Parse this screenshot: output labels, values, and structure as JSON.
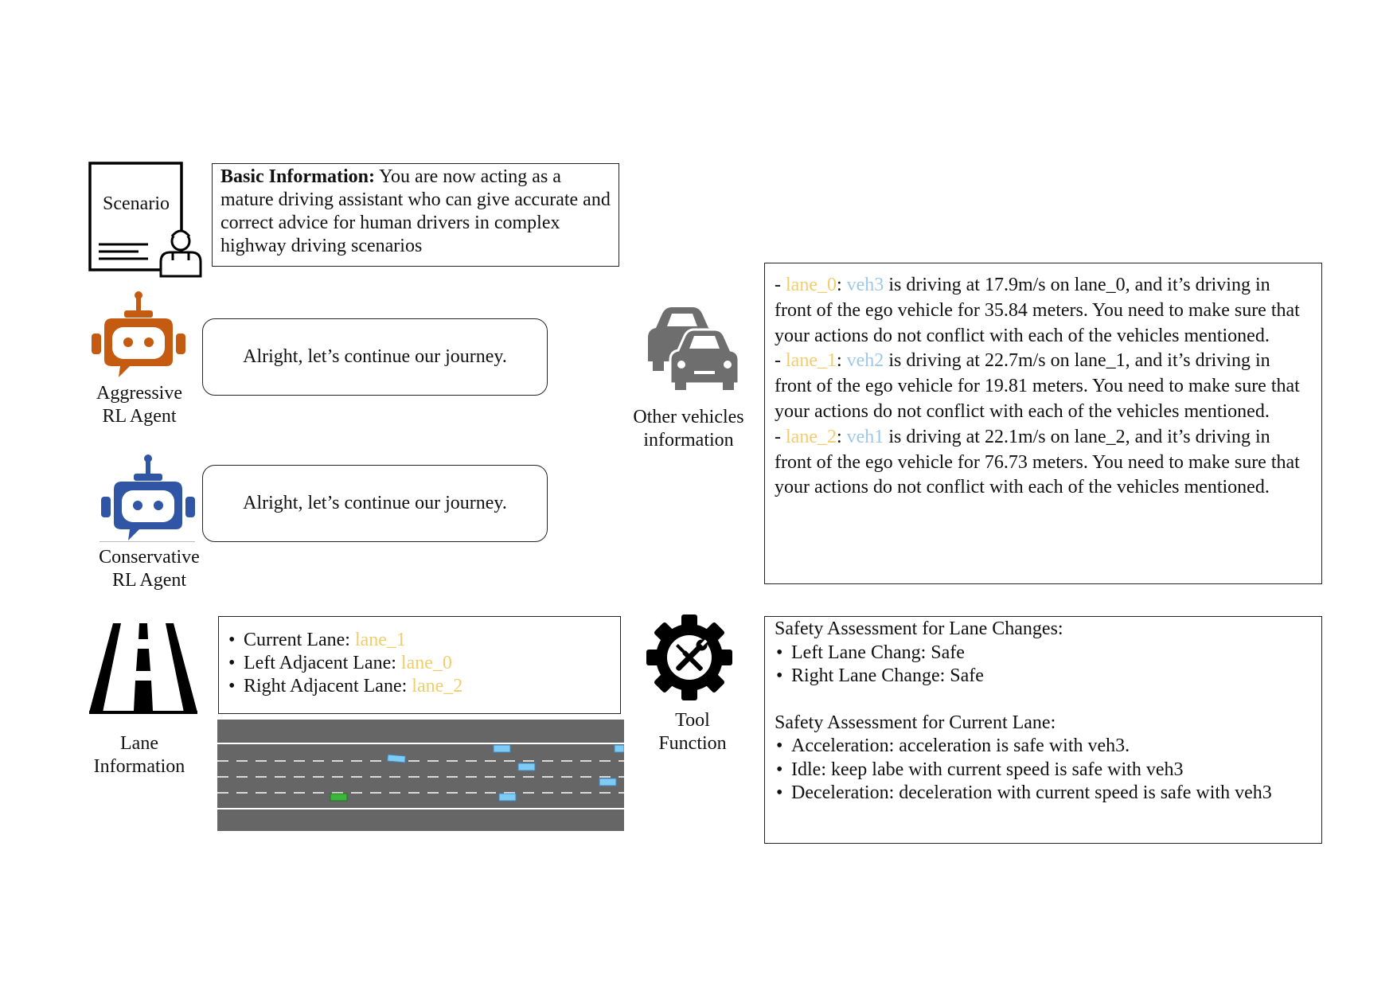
{
  "scenario": {
    "icon_label": "Scenario",
    "basic_title": "Basic Information:",
    "basic_text": " You are now acting as a mature driving assistant who can give accurate and correct advice for human drivers in complex highway driving scenarios"
  },
  "aggressive": {
    "label_line1": "Aggressive",
    "label_line2": "RL Agent",
    "message": "Alright, let’s continue our journey.",
    "color": "#c55a11"
  },
  "conservative": {
    "label_line1": "Conservative",
    "label_line2": "RL Agent",
    "message": "Alright, let’s continue our journey.",
    "color": "#2f55a4"
  },
  "lane_info": {
    "label_line1": "Lane",
    "label_line2": "Information",
    "items": [
      {
        "key": "Current Lane: ",
        "value": "lane_1"
      },
      {
        "key": "Left Adjacent Lane: ",
        "value": "lane_0"
      },
      {
        "key": "Right Adjacent Lane: ",
        "value": "lane_2"
      }
    ]
  },
  "other_vehicles": {
    "label_line1": "Other vehicles",
    "label_line2": "information",
    "entries": [
      {
        "prefix": "- ",
        "lane": "lane_0",
        "sep": ": ",
        "veh": "veh3",
        "text": " is driving at 17.9m/s on lane_0, and it’s driving in front of the ego vehicle for 35.84 meters. You need to make sure that your actions do not conflict with each of the vehicles mentioned."
      },
      {
        "prefix": "- ",
        "lane": "lane_1",
        "sep": ": ",
        "veh": "veh2",
        "text": " is driving at 22.7m/s on lane_1, and it’s driving in front of the ego vehicle for 19.81 meters. You need to make sure that your actions do not conflict with each of the vehicles mentioned."
      },
      {
        "prefix": "- ",
        "lane": "lane_2",
        "sep": ": ",
        "veh": "veh1",
        "text": " is driving at 22.1m/s on lane_2, and it’s driving in front of the ego vehicle for 76.73 meters. You need to make sure that your actions do not conflict with each of the vehicles mentioned."
      }
    ]
  },
  "tool": {
    "label_line1": "Tool",
    "label_line2": "Function",
    "lane_change_title": "Safety Assessment for Lane Changes:",
    "lane_change_items": [
      "Left Lane Chang: Safe",
      "Right Lane Change: Safe"
    ],
    "current_lane_title": "Safety Assessment for Current Lane:",
    "current_lane_items": [
      "Acceleration: acceleration is safe with veh3.",
      "Idle: keep labe with current speed is safe with veh3",
      "Deceleration: deceleration with current speed is safe with veh3"
    ]
  },
  "colors": {
    "lane_name": "#f2cd6b",
    "vehicle_name": "#9ec7e8",
    "road": "#666666",
    "ego_vehicle": "#3cb53c",
    "other_vehicle": "#7ecbf4"
  }
}
